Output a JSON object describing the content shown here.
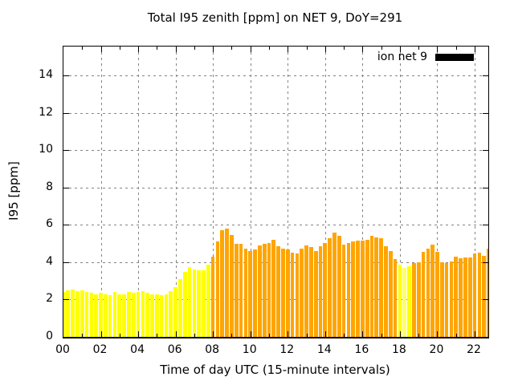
{
  "title": "Total I95 zenith [ppm] on NET 9, DoY=291",
  "legend": {
    "label": "ion net 9",
    "swatch_color": "#000000"
  },
  "axes": {
    "y_label": "I95 [ppm]",
    "x_label": "Time of day UTC (15-minute intervals)",
    "y_ticks": [
      "0",
      "2",
      "4",
      "6",
      "8",
      "10",
      "12",
      "14"
    ],
    "x_ticks": [
      "00",
      "02",
      "04",
      "06",
      "08",
      "10",
      "12",
      "14",
      "16",
      "18",
      "20",
      "22"
    ]
  },
  "colors": {
    "yellow": "#FFFF00",
    "pale_yellow": "#FFFF66",
    "orange": "#FFA500",
    "grid": "#848484",
    "border": "#000000"
  },
  "chart_data": {
    "type": "bar",
    "title": "Total I95 zenith [ppm] on NET 9, DoY=291",
    "xlabel": "Time of day UTC (15-minute intervals)",
    "ylabel": "I95 [ppm]",
    "series_name": "ion net 9",
    "interval_minutes": 15,
    "xlim": [
      0,
      22.73
    ],
    "ylim": [
      0,
      15.56
    ],
    "x_major_ticks": [
      0,
      2,
      4,
      6,
      8,
      10,
      12,
      14,
      16,
      18,
      20,
      22
    ],
    "y_major_ticks": [
      0,
      2,
      4,
      6,
      8,
      10,
      12,
      14
    ],
    "grid": true,
    "legend_position": "top-right",
    "times": [
      "00:00",
      "00:15",
      "00:30",
      "00:45",
      "01:00",
      "01:15",
      "01:30",
      "01:45",
      "02:00",
      "02:15",
      "02:30",
      "02:45",
      "03:00",
      "03:15",
      "03:30",
      "03:45",
      "04:00",
      "04:15",
      "04:30",
      "04:45",
      "05:00",
      "05:15",
      "05:30",
      "05:45",
      "06:00",
      "06:15",
      "06:30",
      "06:45",
      "07:00",
      "07:15",
      "07:30",
      "07:45",
      "08:00",
      "08:15",
      "08:30",
      "08:45",
      "09:00",
      "09:15",
      "09:30",
      "09:45",
      "10:00",
      "10:15",
      "10:30",
      "10:45",
      "11:00",
      "11:15",
      "11:30",
      "11:45",
      "12:00",
      "12:15",
      "12:30",
      "12:45",
      "13:00",
      "13:15",
      "13:30",
      "13:45",
      "14:00",
      "14:15",
      "14:30",
      "14:45",
      "15:00",
      "15:15",
      "15:30",
      "15:45",
      "16:00",
      "16:15",
      "16:30",
      "16:45",
      "17:00",
      "17:15",
      "17:30",
      "17:45",
      "18:00",
      "18:15",
      "18:30",
      "18:45",
      "19:00",
      "19:15",
      "19:30",
      "19:45",
      "20:00",
      "20:15",
      "20:30",
      "20:45",
      "21:00",
      "21:15",
      "21:30",
      "21:45",
      "22:00",
      "22:15",
      "22:30",
      "22:45"
    ],
    "values": [
      2.4,
      2.5,
      2.55,
      2.45,
      2.5,
      2.4,
      2.35,
      2.3,
      2.35,
      2.3,
      2.25,
      2.4,
      2.3,
      2.3,
      2.4,
      2.35,
      2.4,
      2.45,
      2.35,
      2.3,
      2.3,
      2.25,
      2.3,
      2.45,
      2.65,
      3.1,
      3.5,
      3.75,
      3.6,
      3.55,
      3.55,
      3.85,
      4.3,
      5.1,
      5.7,
      5.8,
      5.45,
      5.0,
      5.0,
      4.75,
      4.6,
      4.7,
      4.9,
      5.0,
      5.05,
      5.2,
      4.85,
      4.75,
      4.7,
      4.5,
      4.45,
      4.75,
      4.9,
      4.8,
      4.6,
      4.85,
      5.05,
      5.3,
      5.6,
      5.4,
      4.95,
      5.05,
      5.1,
      5.15,
      5.15,
      5.2,
      5.4,
      5.35,
      5.3,
      4.85,
      4.6,
      4.15,
      3.85,
      3.7,
      3.8,
      3.95,
      4.0,
      4.55,
      4.75,
      4.95,
      4.55,
      4.0,
      3.95,
      4.05,
      4.3,
      4.2,
      4.25,
      4.25,
      4.45,
      4.5,
      4.35,
      4.75
    ],
    "bar_color_codes": [
      "Y",
      "Y",
      "Y",
      "Y",
      "Y",
      "Y",
      "Y",
      "Y",
      "Y",
      "Y",
      "Y",
      "Y",
      "Y",
      "Y",
      "Y",
      "Y",
      "Y",
      "Y",
      "Y",
      "Y",
      "Y",
      "Y",
      "Y",
      "Y",
      "Y",
      "Y",
      "Y",
      "Y",
      "Y",
      "Y",
      "Y",
      "Y",
      "O",
      "O",
      "O",
      "O",
      "O",
      "O",
      "O",
      "O",
      "O",
      "O",
      "O",
      "O",
      "O",
      "O",
      "O",
      "O",
      "O",
      "O",
      "O",
      "O",
      "O",
      "O",
      "O",
      "O",
      "O",
      "O",
      "O",
      "O",
      "O",
      "O",
      "O",
      "O",
      "O",
      "O",
      "O",
      "O",
      "O",
      "O",
      "O",
      "O",
      "Y",
      "P",
      "Y",
      "O",
      "O",
      "O",
      "O",
      "O",
      "O",
      "O",
      "O",
      "O",
      "O",
      "O",
      "O",
      "O",
      "O",
      "O",
      "O",
      "O"
    ],
    "color_code_map": {
      "Y": "#FFFF00",
      "P": "#FFFF66",
      "O": "#FFA500"
    }
  }
}
